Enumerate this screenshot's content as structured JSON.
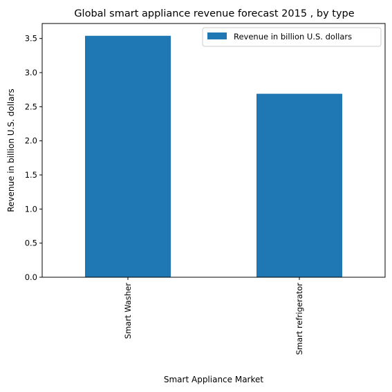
{
  "chart_data": {
    "type": "bar",
    "title": "Global smart appliance revenue forecast 2015 , by type",
    "xlabel": "Smart Appliance Market",
    "ylabel": "Revenue in billion U.S. dollars",
    "categories": [
      "Smart Washer",
      "Smart refrigerator"
    ],
    "series": [
      {
        "name": "Revenue in billion U.S. dollars",
        "values": [
          3.54,
          2.69
        ],
        "color": "#1f77b4"
      }
    ],
    "ylim": [
      0,
      3.72
    ],
    "yticks": [
      0.0,
      0.5,
      1.0,
      1.5,
      2.0,
      2.5,
      3.0,
      3.5
    ],
    "ytick_labels": [
      "0.0",
      "0.5",
      "1.0",
      "1.5",
      "2.0",
      "2.5",
      "3.0",
      "3.5"
    ],
    "grid": false,
    "legend_position": "top-right",
    "x_tick_rotation": "vertical"
  }
}
